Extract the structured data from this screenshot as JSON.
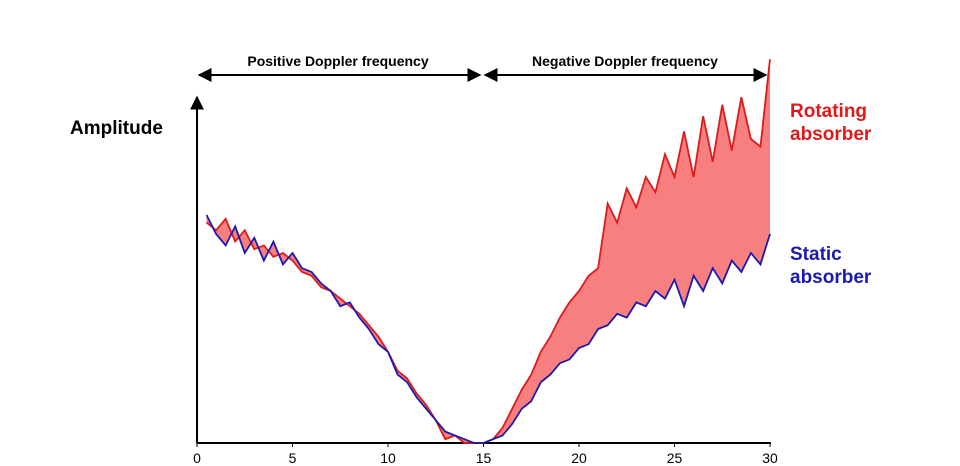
{
  "chart_data": {
    "type": "line",
    "annotations": [
      "Positive Doppler frequency",
      "Negative Doppler frequency"
    ],
    "y_label": "Amplitude",
    "x": [
      0.5,
      1,
      1.5,
      2,
      2.5,
      3,
      3.5,
      4,
      4.5,
      5,
      5.5,
      6,
      6.5,
      7,
      7.5,
      8,
      8.5,
      9,
      9.5,
      10,
      10.5,
      11,
      11.5,
      12,
      12.5,
      13,
      13.5,
      14,
      14.5,
      15,
      15.5,
      16,
      16.5,
      17,
      17.5,
      18,
      18.5,
      19,
      19.5,
      20,
      20.5,
      21,
      21.5,
      22,
      22.5,
      23,
      23.5,
      24,
      24.5,
      25,
      25.5,
      26,
      26.5,
      27,
      27.5,
      28,
      28.5,
      29,
      29.5,
      30
    ],
    "series": [
      {
        "name": "Rotating absorber",
        "color": "#e01a1a",
        "values": [
          58,
          56,
          59,
          53,
          56,
          51,
          52,
          49,
          50,
          48,
          45,
          44,
          41,
          40,
          38,
          36,
          34,
          31,
          28,
          24,
          19,
          17,
          13,
          10,
          6,
          1,
          2,
          0,
          0,
          0,
          1,
          4,
          9,
          14,
          18,
          24,
          28,
          33,
          37,
          40,
          44,
          46,
          63,
          58,
          67,
          62,
          70,
          66,
          76,
          70,
          82,
          70,
          86,
          74,
          89,
          77,
          91,
          80,
          78,
          101
        ]
      },
      {
        "name": "Static absorber",
        "color": "#1a1ab0",
        "values": [
          60,
          55,
          52,
          57,
          50,
          54,
          48,
          53,
          47,
          50,
          46,
          45,
          42,
          40,
          36,
          37,
          33,
          30,
          26,
          24,
          18,
          16,
          12,
          9,
          6,
          3,
          2,
          1,
          0,
          0,
          1,
          2,
          5,
          9,
          11,
          16,
          18,
          21,
          22,
          25,
          26,
          30,
          31,
          34,
          33,
          37,
          36,
          40,
          38,
          43,
          36,
          44,
          40,
          46,
          42,
          48,
          45,
          50,
          47,
          55
        ]
      }
    ],
    "fill_color": "#f77f7f",
    "xlim": [
      0,
      30
    ],
    "xticks": [
      0,
      5,
      10,
      15,
      20,
      25,
      30
    ],
    "ylim": [
      0,
      100
    ]
  }
}
